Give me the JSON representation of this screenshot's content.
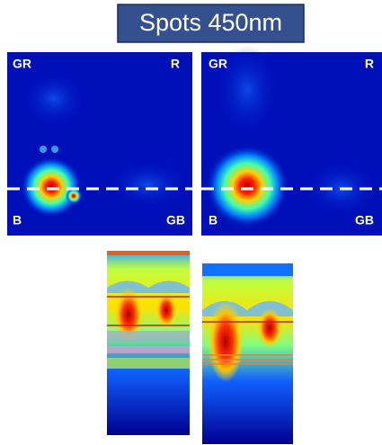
{
  "title": "Spots 450nm",
  "panels": [
    {
      "labels": {
        "top_left": "GR",
        "top_right": "R",
        "bottom_left": "B",
        "bottom_right": "GB"
      }
    },
    {
      "labels": {
        "top_left": "GR",
        "top_right": "R",
        "bottom_left": "B",
        "bottom_right": "GB"
      }
    }
  ]
}
